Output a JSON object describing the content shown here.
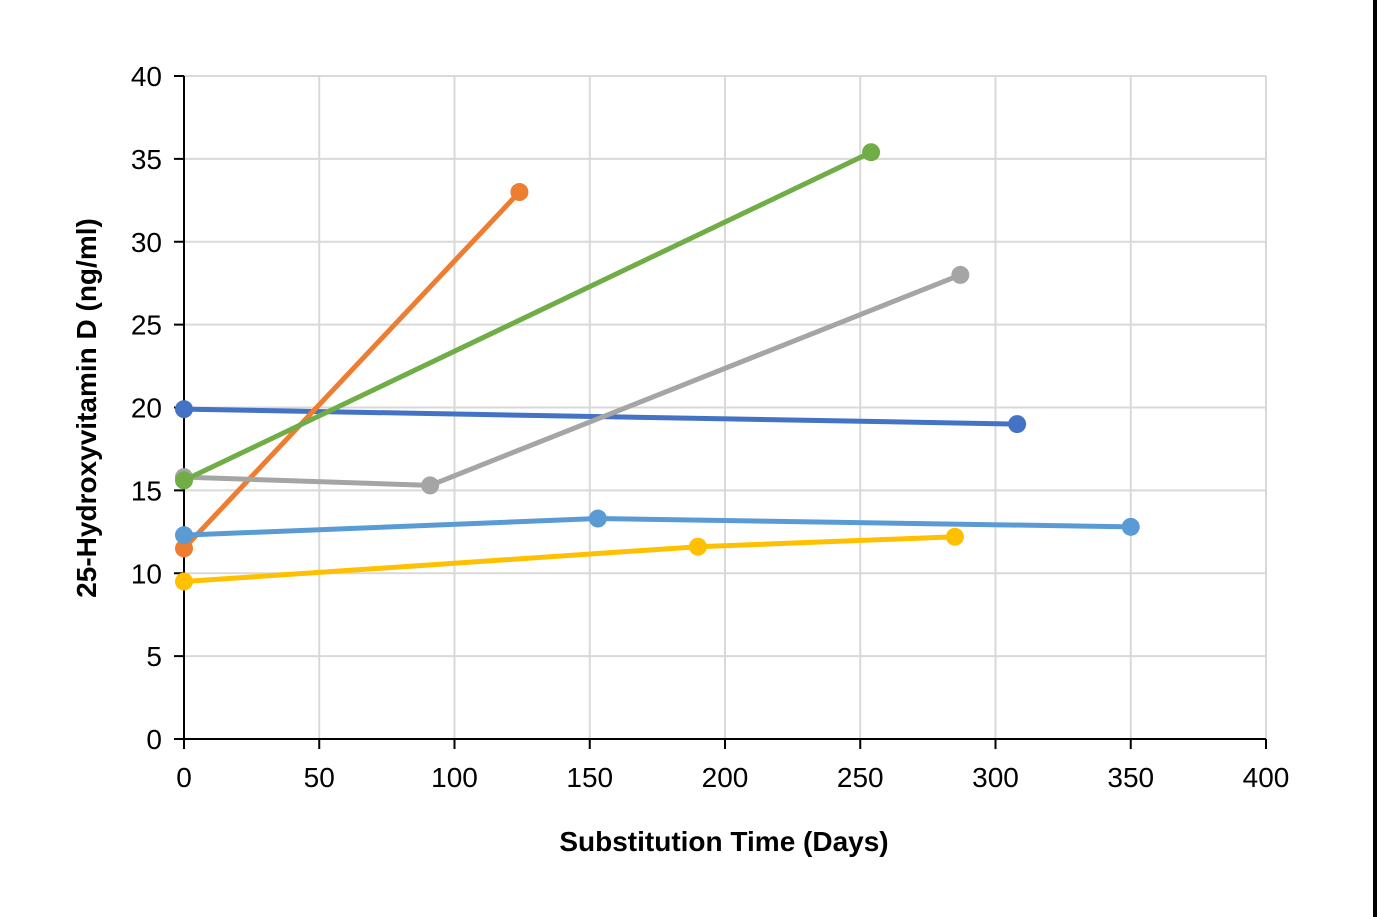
{
  "chart_data": {
    "type": "line",
    "title": "",
    "xlabel": "Substitution Time (Days)",
    "ylabel": "25-Hydroxyvitamin D (ng/ml)",
    "xlim": [
      0,
      400
    ],
    "ylim": [
      0,
      40
    ],
    "xticks": [
      "0",
      "50",
      "100",
      "150",
      "200",
      "250",
      "300",
      "350",
      "400"
    ],
    "yticks": [
      "0",
      "5",
      "10",
      "15",
      "20",
      "25",
      "30",
      "35",
      "40"
    ],
    "grid": true,
    "legend": "none",
    "series": [
      {
        "color": "#4472C4",
        "points": [
          [
            0,
            19.9
          ],
          [
            308,
            19.0
          ]
        ]
      },
      {
        "color": "#ED7D31",
        "points": [
          [
            0,
            11.5
          ],
          [
            124,
            33.0
          ]
        ]
      },
      {
        "color": "#A5A5A5",
        "points": [
          [
            0,
            15.8
          ],
          [
            91,
            15.3
          ],
          [
            287,
            28.0
          ]
        ]
      },
      {
        "color": "#FFC000",
        "points": [
          [
            0,
            9.5
          ],
          [
            190,
            11.6
          ],
          [
            285,
            12.2
          ]
        ]
      },
      {
        "color": "#5B9BD5",
        "points": [
          [
            0,
            12.3
          ],
          [
            153,
            13.3
          ],
          [
            350,
            12.8
          ]
        ]
      },
      {
        "color": "#70AD47",
        "points": [
          [
            0,
            15.6
          ],
          [
            254,
            35.4
          ]
        ]
      }
    ]
  }
}
